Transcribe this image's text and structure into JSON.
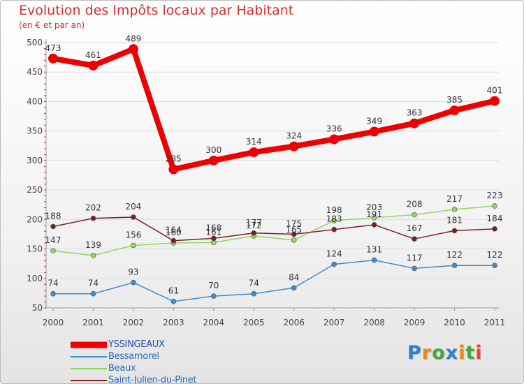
{
  "chart_data": {
    "type": "line",
    "title": "Evolution des Impôts locaux par Habitant",
    "subtitle": "(en € et par an)",
    "xlabel": "",
    "ylabel": "",
    "ylim": [
      50,
      500
    ],
    "yticks": [
      50,
      100,
      150,
      200,
      250,
      300,
      350,
      400,
      450,
      500
    ],
    "categories": [
      "2000",
      "2001",
      "2002",
      "2003",
      "2004",
      "2005",
      "2006",
      "2007",
      "2008",
      "2009",
      "2010",
      "2011"
    ],
    "series": [
      {
        "name": "YSSINGEAUX",
        "color": "#ee0000",
        "values": [
          473,
          461,
          489,
          285,
          300,
          314,
          324,
          336,
          349,
          363,
          385,
          401
        ]
      },
      {
        "name": "Bessamorel",
        "color": "#3d8dcc",
        "values": [
          74,
          74,
          93,
          61,
          70,
          74,
          84,
          124,
          131,
          117,
          122,
          122
        ]
      },
      {
        "name": "Beaux",
        "color": "#8fd85a",
        "values": [
          147,
          139,
          156,
          160,
          161,
          172,
          165,
          198,
          203,
          208,
          217,
          223
        ]
      },
      {
        "name": "Saint-Julien-du-Pinet",
        "color": "#7a1f25",
        "values": [
          188,
          202,
          204,
          164,
          168,
          177,
          175,
          183,
          191,
          167,
          181,
          184
        ]
      }
    ],
    "legend_position": "bottom-left",
    "grid": "horizontal"
  },
  "logo": {
    "letters": [
      "P",
      "r",
      "o",
      "x",
      "i",
      "t",
      "i"
    ],
    "colors": [
      "#2f7fd1",
      "#e88a1f",
      "#46a83a",
      "#2f7fd1",
      "#e88a1f",
      "#46a83a",
      "#e84b2b"
    ]
  }
}
